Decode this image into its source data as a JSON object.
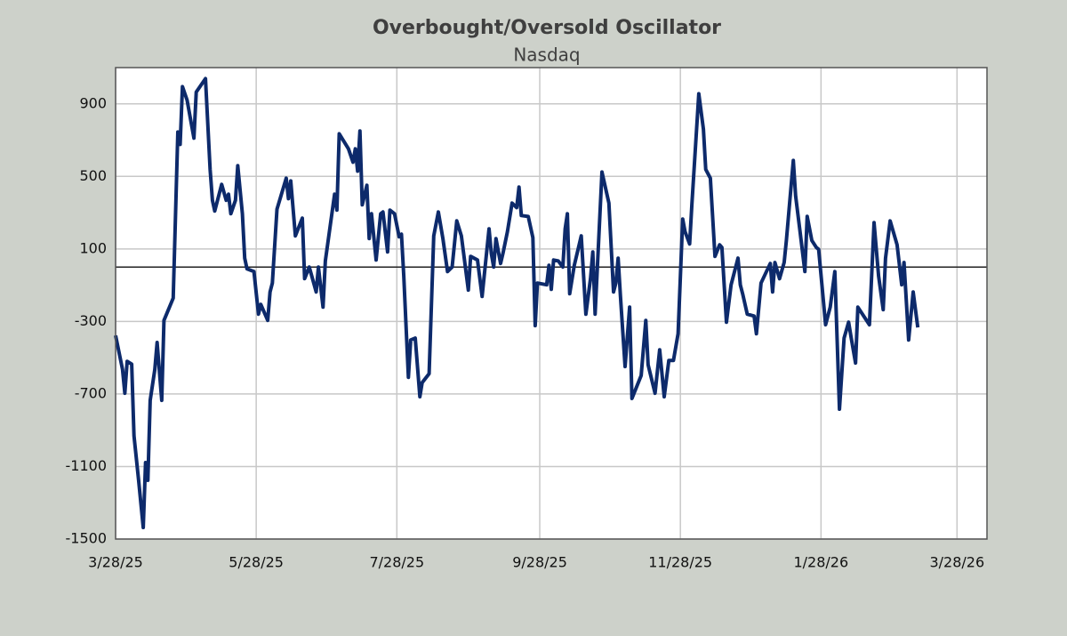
{
  "chart_data": {
    "type": "line",
    "title": "Overbought/Oversold Oscillator",
    "subtitle": "Nasdaq",
    "xlim": [
      "3/28/25",
      "4/10/26"
    ],
    "xticks": [
      "3/28/25",
      "5/28/25",
      "7/28/25",
      "9/28/25",
      "11/28/25",
      "1/28/26",
      "3/28/26"
    ],
    "ylim": [
      -1500,
      1100
    ],
    "yticks": [
      -1500,
      -1100,
      -700,
      -300,
      100,
      500,
      900
    ],
    "grid": true,
    "reference_line": 0,
    "x": [
      "3/28/25",
      "3/31/25",
      "4/1/25",
      "4/2/25",
      "4/4/25",
      "4/5/25",
      "4/7/25",
      "4/9/25",
      "4/10/25",
      "4/11/25",
      "4/12/25",
      "4/14/25",
      "4/15/25",
      "4/17/25",
      "4/18/25",
      "4/22/25",
      "4/24/25",
      "4/25/25",
      "4/26/25",
      "4/28/25",
      "5/1/25",
      "5/2/25",
      "5/6/25",
      "5/8/25",
      "5/9/25",
      "5/10/25",
      "5/13/25",
      "5/15/25",
      "5/16/25",
      "5/17/25",
      "5/19/25",
      "5/20/25",
      "5/22/25",
      "5/23/25",
      "5/24/25",
      "5/27/25",
      "5/29/25",
      "5/30/25",
      "6/2/25",
      "6/3/25",
      "6/4/25",
      "6/6/25",
      "6/10/25",
      "6/11/25",
      "6/12/25",
      "6/14/25",
      "6/17/25",
      "6/18/25",
      "6/20/25",
      "6/23/25",
      "6/24/25",
      "6/26/25",
      "6/27/25",
      "7/1/25",
      "7/2/25",
      "7/3/25",
      "7/7/25",
      "7/9/25",
      "7/10/25",
      "7/11/25",
      "7/12/25",
      "7/13/25",
      "7/15/25",
      "7/16/25",
      "7/17/25",
      "7/19/25",
      "7/21/25",
      "7/22/25",
      "7/24/25",
      "7/25/25",
      "7/27/25",
      "7/29/25",
      "7/30/25",
      "7/31/25",
      "8/2/25",
      "8/3/25",
      "8/5/25",
      "8/7/25",
      "8/8/25",
      "8/11/25",
      "8/13/25",
      "8/15/25",
      "8/17/25",
      "8/19/25",
      "8/21/25",
      "8/23/25",
      "8/25/25",
      "8/28/25",
      "8/29/25",
      "9/1/25",
      "9/3/25",
      "9/6/25",
      "9/7/25",
      "9/8/25",
      "9/9/25",
      "9/11/25",
      "9/12/25",
      "9/14/25",
      "9/16/25",
      "9/18/25",
      "9/19/25",
      "9/20/25",
      "9/23/25",
      "9/25/25",
      "9/26/25",
      "9/27/25",
      "10/1/25",
      "10/2/25",
      "10/3/25",
      "10/4/25",
      "10/6/25",
      "10/8/25",
      "10/9/25",
      "10/10/25",
      "10/11/25",
      "10/13/25",
      "10/16/25",
      "10/18/25",
      "10/20/25",
      "10/21/25",
      "10/22/25",
      "10/25/25",
      "10/28/25",
      "10/30/25",
      "10/31/25",
      "11/1/25",
      "11/2/25",
      "11/4/25",
      "11/6/25",
      "11/7/25",
      "11/11/25",
      "11/13/25",
      "11/14/25",
      "11/17/25",
      "11/19/25",
      "11/21/25",
      "11/23/25",
      "11/25/25",
      "11/27/25",
      "11/29/25",
      "11/30/25",
      "12/2/25",
      "12/3/25",
      "12/6/25",
      "12/8/25",
      "12/9/25",
      "12/11/25",
      "12/13/25",
      "12/15/25",
      "12/16/25",
      "12/18/25",
      "12/20/25",
      "12/23/25",
      "12/24/25",
      "12/25/25",
      "12/27/25",
      "12/30/25",
      "12/31/25",
      "1/2/26",
      "1/6/26",
      "1/7/26",
      "1/8/26",
      "1/10/26",
      "1/12/26",
      "1/13/26",
      "1/16/26",
      "1/17/26",
      "1/19/26",
      "1/21/26",
      "1/22/26",
      "1/24/26",
      "1/26/26",
      "1/27/26",
      "1/30/26",
      "2/1/26",
      "2/3/26",
      "2/5/26",
      "2/7/26",
      "2/9/26",
      "2/10/26",
      "2/12/26",
      "2/13/26",
      "2/18/26",
      "2/20/26",
      "2/22/26",
      "2/24/26",
      "2/25/26",
      "2/27/26",
      "3/2/26",
      "3/4/26",
      "3/5/26",
      "3/7/26",
      "3/9/26",
      "3/11/26"
    ],
    "series": [
      {
        "color": "#0d2a6b",
        "values": [
          -377,
          -565,
          -696,
          -520,
          -535,
          -931,
          -1176,
          -1436,
          -1078,
          -1176,
          -735,
          -565,
          -416,
          -735,
          -294,
          -171,
          745,
          676,
          995,
          921,
          711,
          965,
          1039,
          539,
          368,
          309,
          456,
          368,
          402,
          294,
          368,
          559,
          294,
          49,
          -10,
          -25,
          -260,
          -206,
          -294,
          -137,
          -88,
          319,
          490,
          377,
          475,
          172,
          270,
          -64,
          0,
          -137,
          0,
          -221,
          34,
          402,
          314,
          735,
          652,
          578,
          652,
          529,
          750,
          343,
          451,
          157,
          294,
          39,
          294,
          304,
          83,
          314,
          294,
          167,
          181,
          -49,
          -608,
          -402,
          -392,
          -715,
          -637,
          -588,
          172,
          304,
          157,
          -25,
          0,
          255,
          172,
          -127,
          59,
          39,
          -162,
          211,
          74,
          0,
          157,
          20,
          74,
          196,
          353,
          328,
          441,
          284,
          279,
          162,
          -323,
          -88,
          -98,
          10,
          -123,
          39,
          34,
          0,
          211,
          294,
          -147,
          10,
          172,
          -260,
          -64,
          83,
          -260,
          524,
          353,
          -137,
          -88,
          49,
          -162,
          -549,
          -221,
          -725,
          -598,
          -294,
          -539,
          -696,
          -456,
          -715,
          -515,
          -515,
          -368,
          265,
          196,
          127,
          343,
          956,
          760,
          539,
          490,
          59,
          123,
          108,
          -304,
          -98,
          49,
          -98,
          -147,
          -260,
          -270,
          -368,
          -88,
          20,
          -137,
          25,
          -64,
          25,
          147,
          588,
          392,
          186,
          -25,
          280,
          147,
          108,
          98,
          -318,
          -221,
          -25,
          -784,
          -392,
          -304,
          -382,
          -529,
          -221,
          -318,
          245,
          -49,
          -235,
          49,
          255,
          123,
          -98,
          25,
          -402,
          -137,
          -333
        ]
      }
    ]
  }
}
